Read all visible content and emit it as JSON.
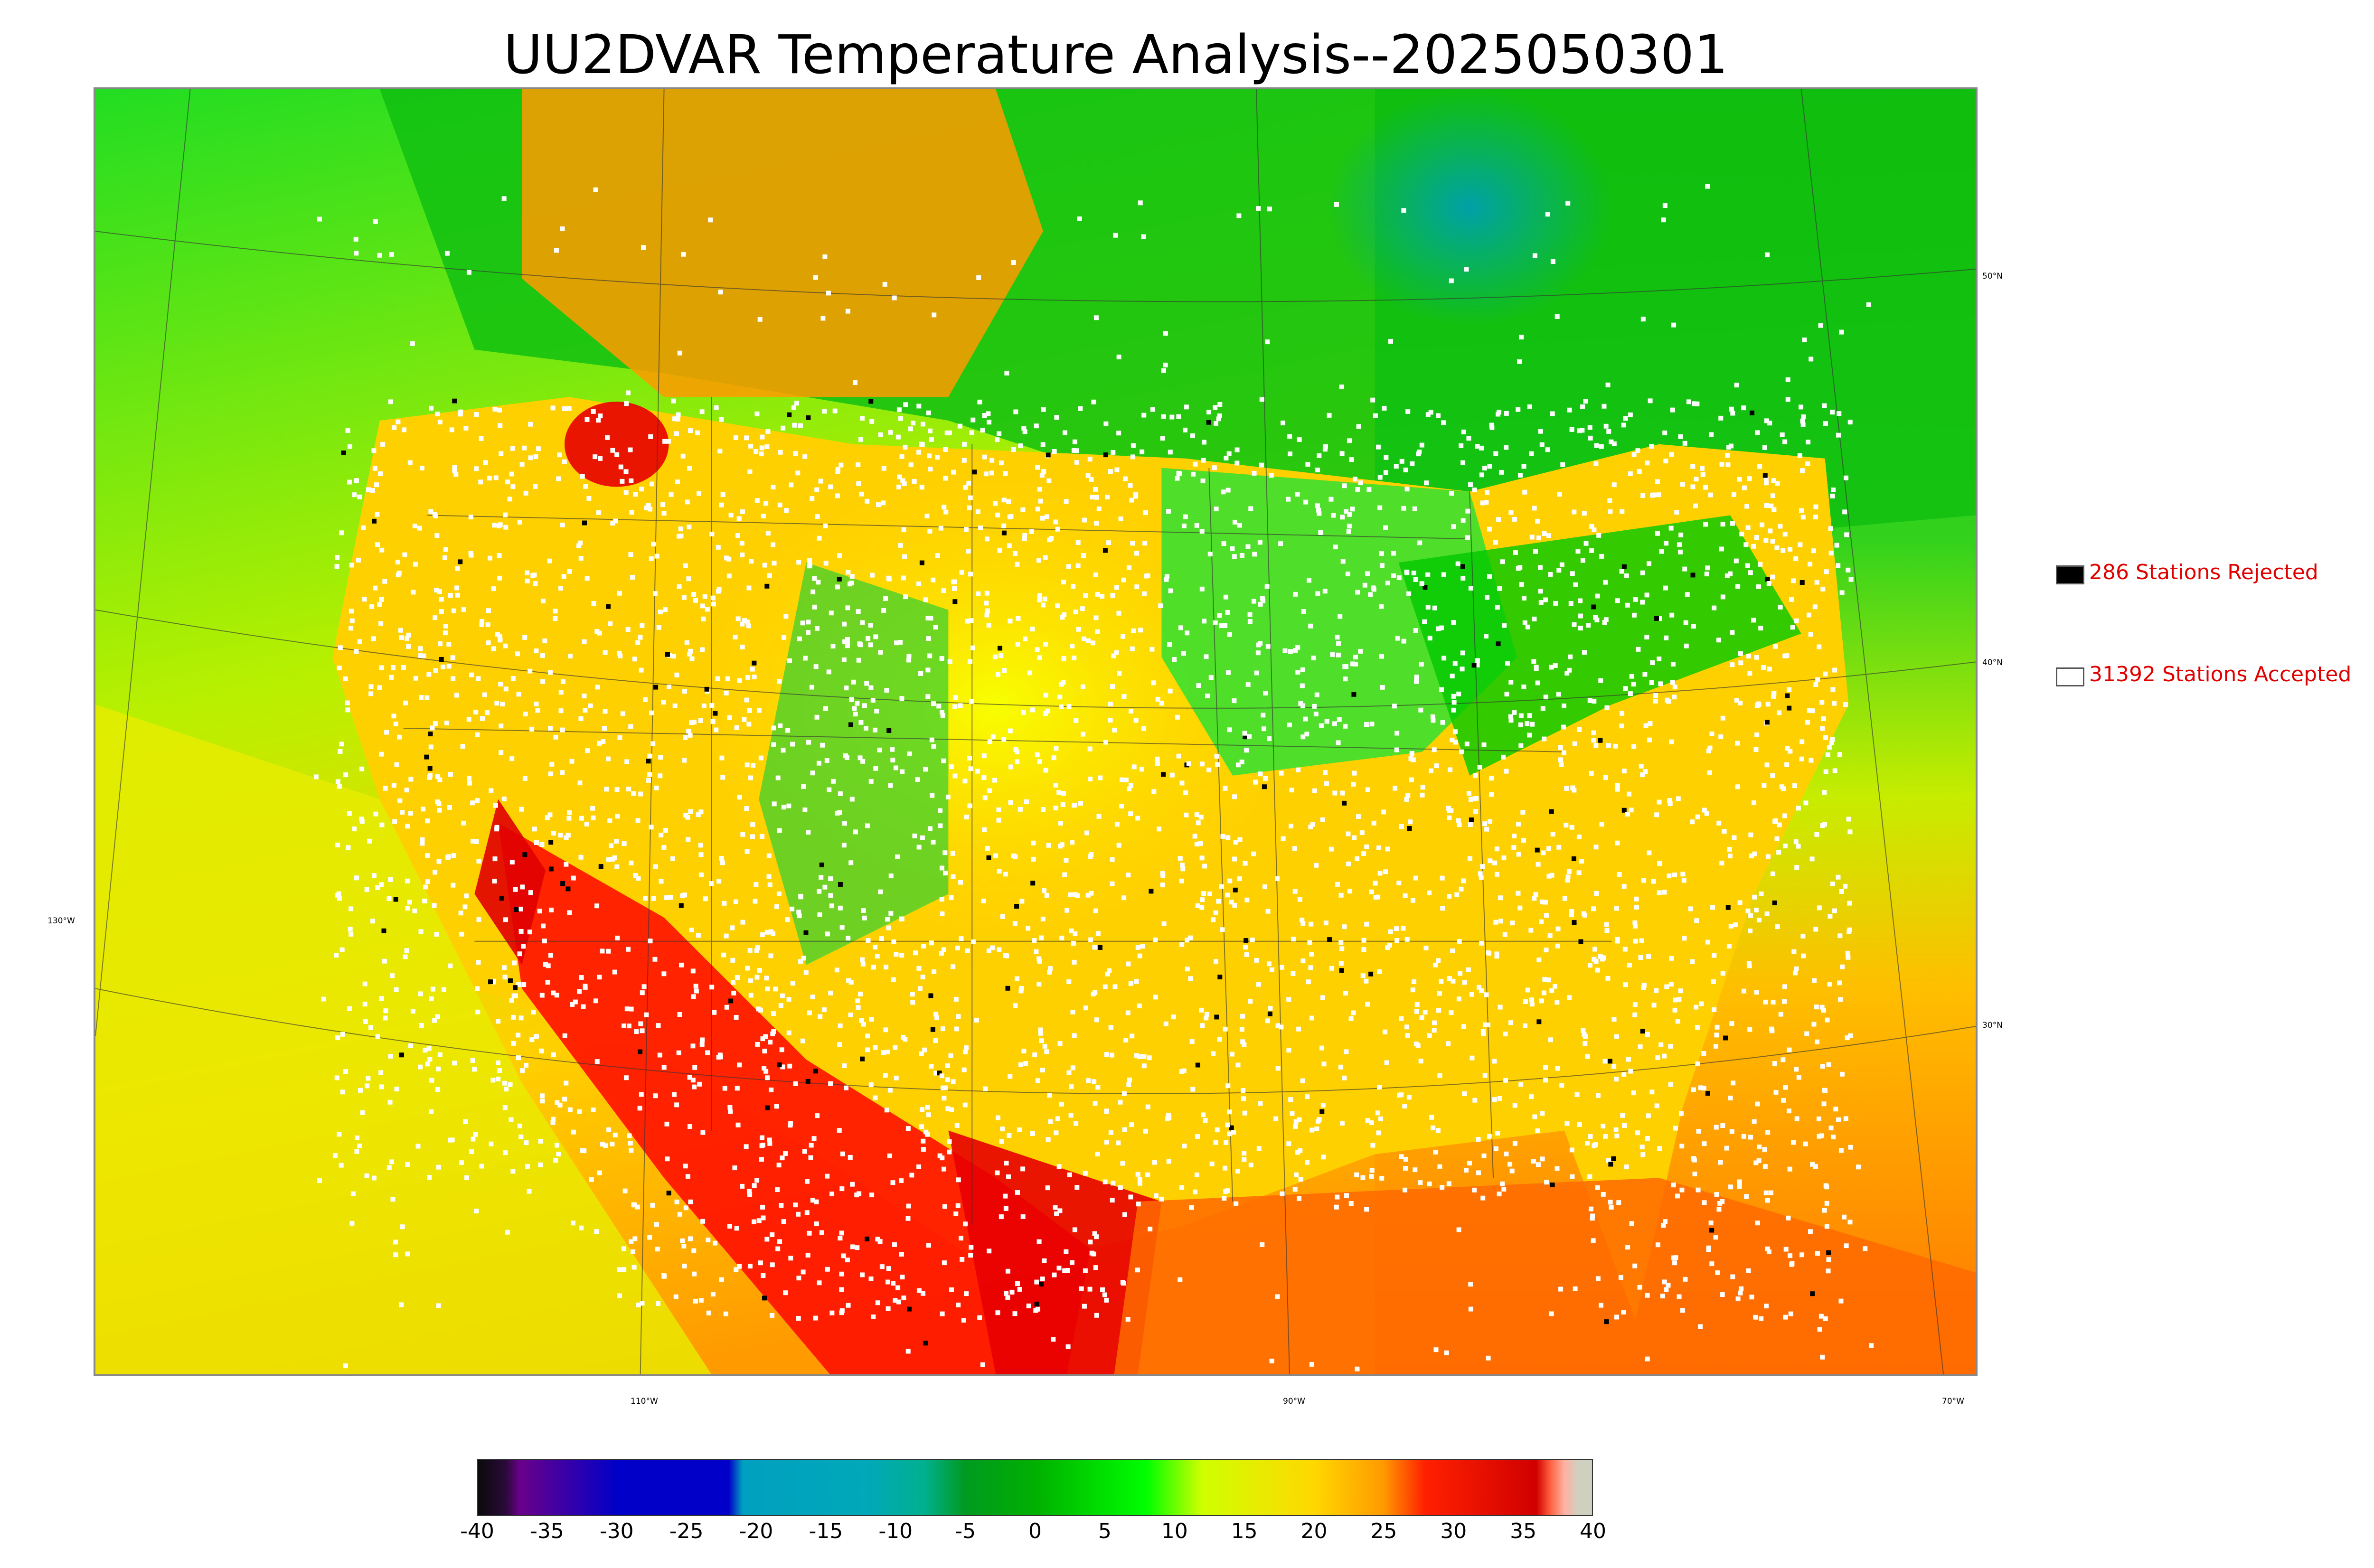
{
  "title": "UU2DVAR Temperature Analysis--2025050301",
  "legend": {
    "rejected": {
      "label": "286 Stations Rejected",
      "swatch_color": "#000000"
    },
    "accepted": {
      "label": "31392 Stations Accepted",
      "swatch_color": "#ffffff"
    }
  },
  "map": {
    "lat_labels": [
      "50°N",
      "40°N",
      "30°N"
    ],
    "lon_labels": [
      "130°W",
      "110°W",
      "90°W",
      "70°W"
    ],
    "land_colors": {
      "cool": "#00cc00",
      "mild": "#c8f000",
      "warm": "#ffc800",
      "hot": "#ff3000",
      "ocean_north": "#22dd22",
      "ocean_south": "#ff9000",
      "lake_cold": "#00a89a"
    },
    "station_accepted_color": "#ffffff",
    "station_rejected_color": "#000000"
  },
  "colorbar": {
    "ticks": [
      "-40",
      "-35",
      "-30",
      "-25",
      "-20",
      "-15",
      "-10",
      "-5",
      "0",
      "5",
      "10",
      "15",
      "20",
      "25",
      "30",
      "35",
      "40"
    ],
    "stops": [
      {
        "v": -40,
        "c": "#0a0a0a"
      },
      {
        "v": -38,
        "c": "#2a0a3a"
      },
      {
        "v": -37,
        "c": "#6a008a"
      },
      {
        "v": -30,
        "c": "#0000c8"
      },
      {
        "v": -22,
        "c": "#0000c8"
      },
      {
        "v": -21,
        "c": "#00a0c0"
      },
      {
        "v": -12,
        "c": "#00a8b8"
      },
      {
        "v": -8,
        "c": "#00b090"
      },
      {
        "v": -5,
        "c": "#009a20"
      },
      {
        "v": 0,
        "c": "#00b000"
      },
      {
        "v": 8,
        "c": "#00ff00"
      },
      {
        "v": 12,
        "c": "#d0ff00"
      },
      {
        "v": 20,
        "c": "#ffd800"
      },
      {
        "v": 25,
        "c": "#ff9a00"
      },
      {
        "v": 28,
        "c": "#ff2000"
      },
      {
        "v": 36,
        "c": "#d00000"
      },
      {
        "v": 37,
        "c": "#ff6040"
      },
      {
        "v": 38,
        "c": "#ffb0a0"
      },
      {
        "v": 39,
        "c": "#d0d0c0"
      },
      {
        "v": 40,
        "c": "#d0d0c0"
      }
    ],
    "min": -40,
    "max": 40
  }
}
